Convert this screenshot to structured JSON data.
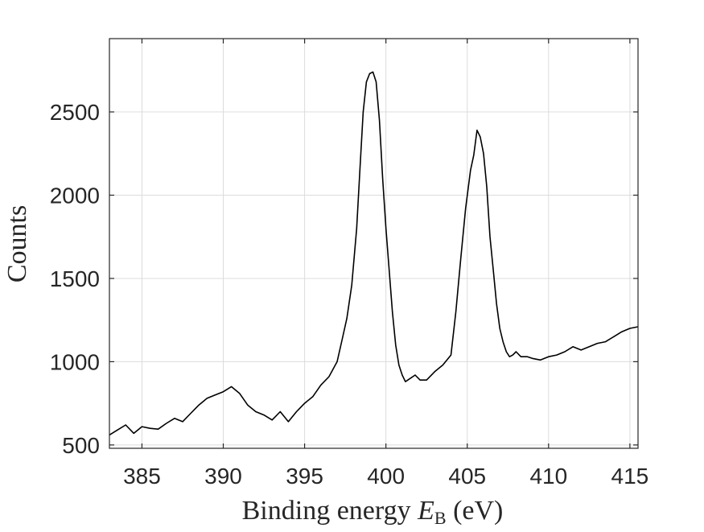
{
  "chart_data": {
    "type": "line",
    "xlabel": {
      "prefix": "Binding energy ",
      "symbol": "E",
      "subscript": "B",
      "suffix": " (eV)"
    },
    "ylabel": "Counts",
    "xlim": [
      383,
      415.5
    ],
    "ylim": [
      480,
      2940
    ],
    "x_ticks": [
      385,
      390,
      395,
      400,
      405,
      410,
      415
    ],
    "x_tick_labels": [
      "385",
      "390",
      "395",
      "400",
      "405",
      "410",
      "415"
    ],
    "y_ticks": [
      500,
      1000,
      1500,
      2000,
      2500
    ],
    "y_tick_labels": [
      "500",
      "1000",
      "1500",
      "2000",
      "2500"
    ],
    "grid": true,
    "legend": "none",
    "series": [
      {
        "color": "#000000",
        "x": [
          383.0,
          383.5,
          384.0,
          384.5,
          385.0,
          385.5,
          386.0,
          386.5,
          387.0,
          387.5,
          388.0,
          388.5,
          389.0,
          389.5,
          390.0,
          390.5,
          391.0,
          391.5,
          392.0,
          392.5,
          393.0,
          393.5,
          394.0,
          394.5,
          395.0,
          395.5,
          396.0,
          396.5,
          397.0,
          397.3,
          397.6,
          397.9,
          398.2,
          398.4,
          398.6,
          398.8,
          399.0,
          399.2,
          399.4,
          399.6,
          399.8,
          400.0,
          400.2,
          400.4,
          400.6,
          400.8,
          401.0,
          401.2,
          401.5,
          401.8,
          402.1,
          402.5,
          403.0,
          403.5,
          404.0,
          404.3,
          404.6,
          404.9,
          405.2,
          405.4,
          405.6,
          405.8,
          406.0,
          406.2,
          406.4,
          406.6,
          406.8,
          407.0,
          407.2,
          407.4,
          407.6,
          407.8,
          408.0,
          408.3,
          408.7,
          409.0,
          409.5,
          410.0,
          410.5,
          411.0,
          411.5,
          412.0,
          412.5,
          413.0,
          413.5,
          414.0,
          414.5,
          415.0,
          415.5
        ],
        "y": [
          560,
          590,
          620,
          570,
          610,
          600,
          595,
          630,
          660,
          640,
          690,
          740,
          780,
          800,
          820,
          850,
          810,
          740,
          700,
          680,
          650,
          700,
          640,
          700,
          750,
          790,
          860,
          910,
          1000,
          1130,
          1260,
          1460,
          1800,
          2150,
          2500,
          2680,
          2730,
          2740,
          2680,
          2450,
          2100,
          1800,
          1550,
          1300,
          1100,
          980,
          920,
          880,
          900,
          920,
          890,
          890,
          940,
          980,
          1040,
          1300,
          1620,
          1920,
          2150,
          2240,
          2390,
          2350,
          2250,
          2050,
          1750,
          1550,
          1350,
          1200,
          1120,
          1060,
          1030,
          1040,
          1060,
          1030,
          1030,
          1020,
          1010,
          1030,
          1040,
          1060,
          1090,
          1070,
          1090,
          1110,
          1120,
          1150,
          1180,
          1200,
          1210
        ]
      }
    ]
  }
}
